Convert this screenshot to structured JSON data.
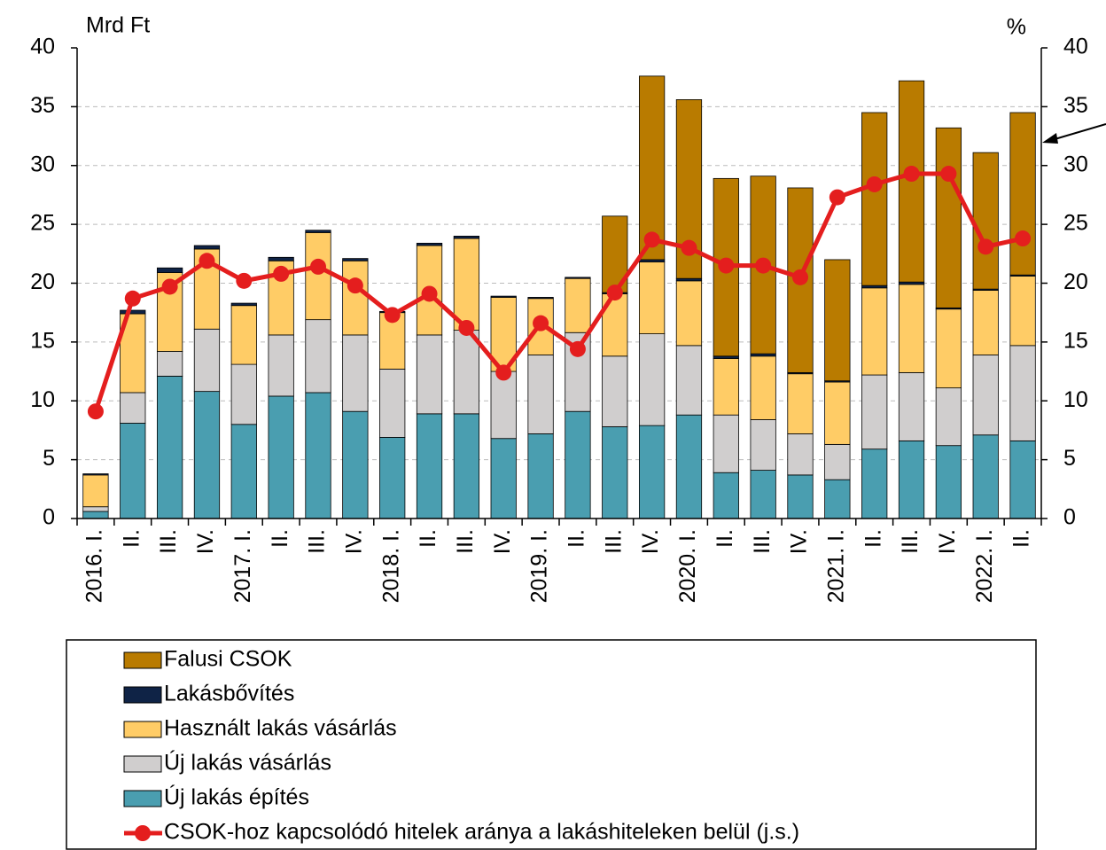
{
  "chart_data": {
    "type": "bar",
    "y_label": "Mrd Ft",
    "y2_label": "%",
    "categories": [
      "2016. I.",
      "II.",
      "III.",
      "IV.",
      "2017. I.",
      "II.",
      "III.",
      "IV.",
      "2018. I.",
      "II.",
      "III.",
      "IV.",
      "2019. I.",
      "II.",
      "III.",
      "IV.",
      "2020. I.",
      "II.",
      "III.",
      "IV.",
      "2021. I.",
      "II.",
      "III.",
      "IV.",
      "2022. I.",
      "II."
    ],
    "stacked": true,
    "series": [
      {
        "name": "Új lakás építés",
        "color": "#4a9eb0",
        "values": [
          0.6,
          8.1,
          12.1,
          10.8,
          8.0,
          10.4,
          10.7,
          9.1,
          6.9,
          8.9,
          8.9,
          6.8,
          7.2,
          9.1,
          7.8,
          7.9,
          8.8,
          3.9,
          4.1,
          3.7,
          3.3,
          5.9,
          6.6,
          6.2,
          7.1,
          6.6
        ]
      },
      {
        "name": "Új lakás vásárlás",
        "color": "#d0cece",
        "values": [
          0.4,
          2.6,
          2.1,
          5.3,
          5.1,
          5.2,
          6.2,
          6.5,
          5.8,
          6.7,
          7.1,
          5.7,
          6.7,
          6.7,
          6.0,
          7.8,
          5.9,
          4.9,
          4.3,
          3.5,
          3.0,
          6.3,
          5.8,
          4.9,
          6.8,
          8.1
        ]
      },
      {
        "name": "Használt lakás vásárlás",
        "color": "#ffcc66",
        "values": [
          2.7,
          6.7,
          6.7,
          6.8,
          5.0,
          6.3,
          7.4,
          6.3,
          4.8,
          7.6,
          7.8,
          6.3,
          4.8,
          4.6,
          5.3,
          6.1,
          5.5,
          4.8,
          5.4,
          5.1,
          5.3,
          7.4,
          7.5,
          6.7,
          5.5,
          5.9
        ]
      },
      {
        "name": "Lakásbővítés",
        "color": "#0f2346",
        "values": [
          0.1,
          0.3,
          0.4,
          0.3,
          0.2,
          0.3,
          0.2,
          0.2,
          0.1,
          0.2,
          0.2,
          0.1,
          0.1,
          0.1,
          0.1,
          0.2,
          0.2,
          0.2,
          0.2,
          0.1,
          0.1,
          0.2,
          0.2,
          0.1,
          0.1,
          0.1
        ]
      },
      {
        "name": "Falusi CSOK",
        "color": "#b97b00",
        "values": [
          0,
          0,
          0,
          0,
          0,
          0,
          0,
          0,
          0,
          0,
          0,
          0,
          0,
          0,
          6.5,
          15.6,
          15.2,
          15.1,
          15.1,
          15.7,
          10.3,
          14.7,
          17.1,
          15.3,
          11.6,
          13.8
        ]
      },
      {
        "name": "CSOK-hoz kapcsolódó hitelek aránya a lakáshiteleken belül (j.s.)",
        "type": "line",
        "axis": "y2",
        "color": "#e41e1e",
        "values": [
          9.1,
          18.7,
          19.7,
          21.9,
          20.2,
          20.8,
          21.4,
          19.8,
          17.3,
          19.1,
          16.2,
          12.4,
          16.6,
          14.4,
          19.2,
          23.7,
          23.0,
          21.5,
          21.5,
          20.5,
          27.3,
          28.4,
          29.3,
          29.3,
          23.1,
          23.8
        ]
      }
    ],
    "legend_order": [
      4,
      3,
      2,
      1,
      0,
      5
    ],
    "ylim": [
      0,
      40
    ],
    "yticks": [
      0,
      5,
      10,
      15,
      20,
      25,
      30,
      35,
      40
    ],
    "y2lim": [
      0,
      40
    ],
    "y2ticks": [
      0,
      5,
      10,
      15,
      20,
      25,
      30,
      35,
      40
    ],
    "grid": true
  }
}
